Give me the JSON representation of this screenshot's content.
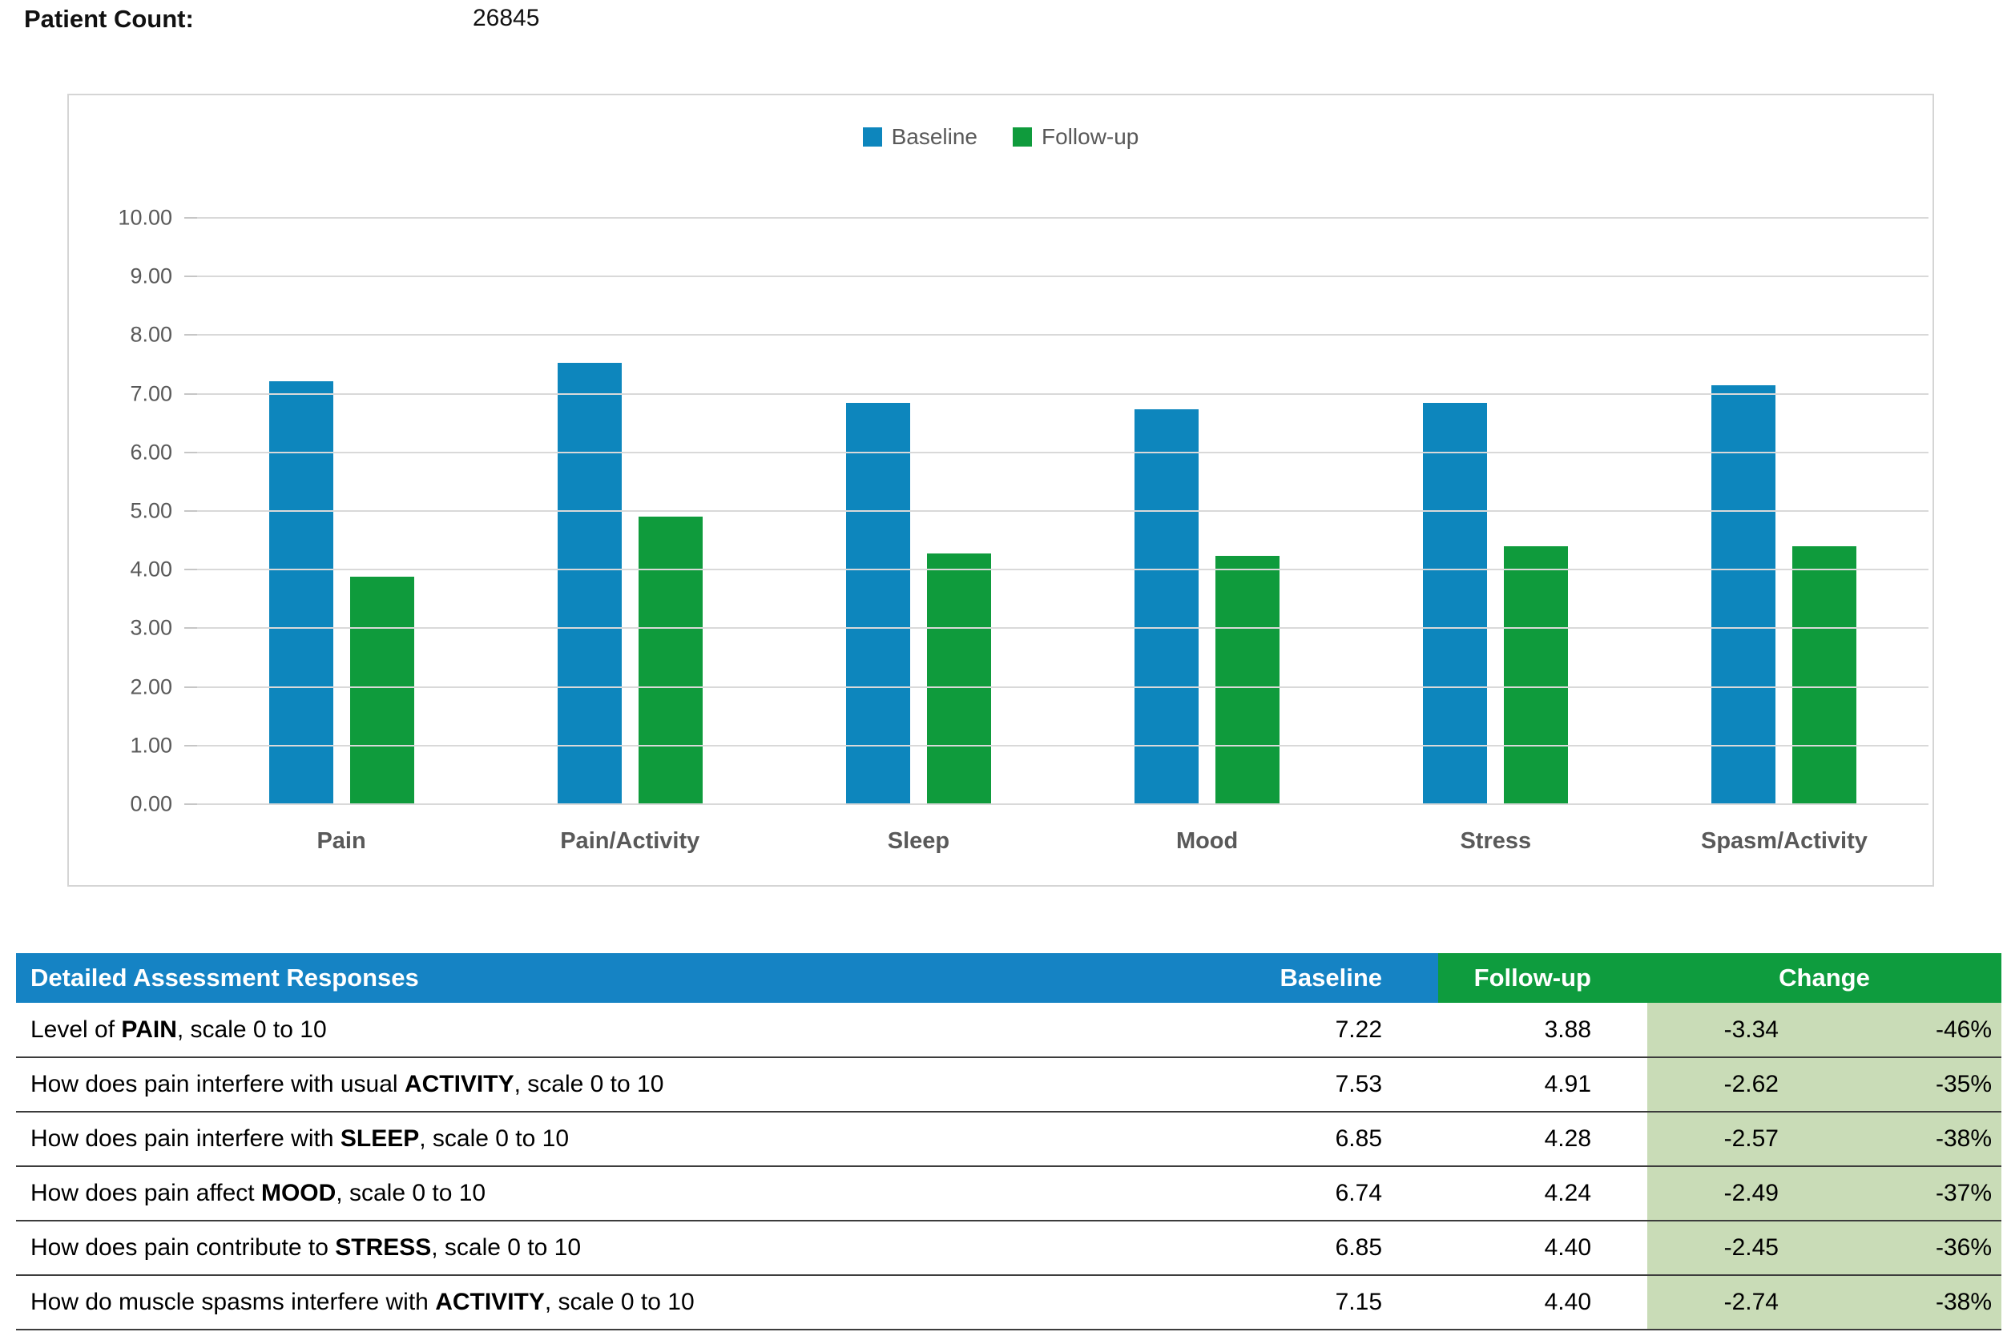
{
  "page": {
    "patient_count_label": "Patient Count:",
    "patient_count_value": "26845"
  },
  "colors": {
    "baseline_blue": "#0d86bd",
    "followup_green": "#0f9b3c",
    "header_blue": "#1583c4",
    "header_green": "#0e9c3e",
    "change_cell_green": "#c9dcb7",
    "gridline_gray": "#d9d9d9",
    "axis_text_gray": "#595959"
  },
  "chart_data": {
    "type": "bar",
    "title": "",
    "categories": [
      "Pain",
      "Pain/Activity",
      "Sleep",
      "Mood",
      "Stress",
      "Spasm/Activity"
    ],
    "series": [
      {
        "name": "Baseline",
        "color": "#0d86bd",
        "values": [
          7.22,
          7.53,
          6.85,
          6.74,
          6.85,
          7.15
        ]
      },
      {
        "name": "Follow-up",
        "color": "#0f9b3c",
        "values": [
          3.88,
          4.91,
          4.28,
          4.24,
          4.4,
          4.4
        ]
      }
    ],
    "xlabel": "",
    "ylabel": "",
    "ylim": [
      0,
      10
    ],
    "ytick_step": 1,
    "ytick_labels": [
      "10.00",
      "9.00",
      "8.00",
      "7.00",
      "6.00",
      "5.00",
      "4.00",
      "3.00",
      "2.00",
      "1.00",
      "0.00"
    ],
    "grid": true,
    "legend_position": "top"
  },
  "table": {
    "header": {
      "title": "Detailed Assessment Responses",
      "baseline": "Baseline",
      "followup": "Follow-up",
      "change": "Change"
    },
    "rows": [
      {
        "label_pre": "Level of ",
        "label_bold": "PAIN",
        "label_post": ", scale 0 to 10",
        "baseline": "7.22",
        "followup": "3.88",
        "change": "-3.34",
        "change_pct": "-46%"
      },
      {
        "label_pre": "How does pain interfere with usual ",
        "label_bold": "ACTIVITY",
        "label_post": ", scale 0 to 10",
        "baseline": "7.53",
        "followup": "4.91",
        "change": "-2.62",
        "change_pct": "-35%"
      },
      {
        "label_pre": "How does pain interfere with ",
        "label_bold": "SLEEP",
        "label_post": ", scale 0 to 10",
        "baseline": "6.85",
        "followup": "4.28",
        "change": "-2.57",
        "change_pct": "-38%"
      },
      {
        "label_pre": "How does pain affect ",
        "label_bold": "MOOD",
        "label_post": ", scale 0 to 10",
        "baseline": "6.74",
        "followup": "4.24",
        "change": "-2.49",
        "change_pct": "-37%"
      },
      {
        "label_pre": "How does pain contribute to ",
        "label_bold": "STRESS",
        "label_post": ", scale 0 to 10",
        "baseline": "6.85",
        "followup": "4.40",
        "change": "-2.45",
        "change_pct": "-36%"
      },
      {
        "label_pre": "How do muscle spasms interfere with ",
        "label_bold": "ACTIVITY",
        "label_post": ", scale 0 to 10",
        "baseline": "7.15",
        "followup": "4.40",
        "change": "-2.74",
        "change_pct": "-38%"
      }
    ]
  }
}
